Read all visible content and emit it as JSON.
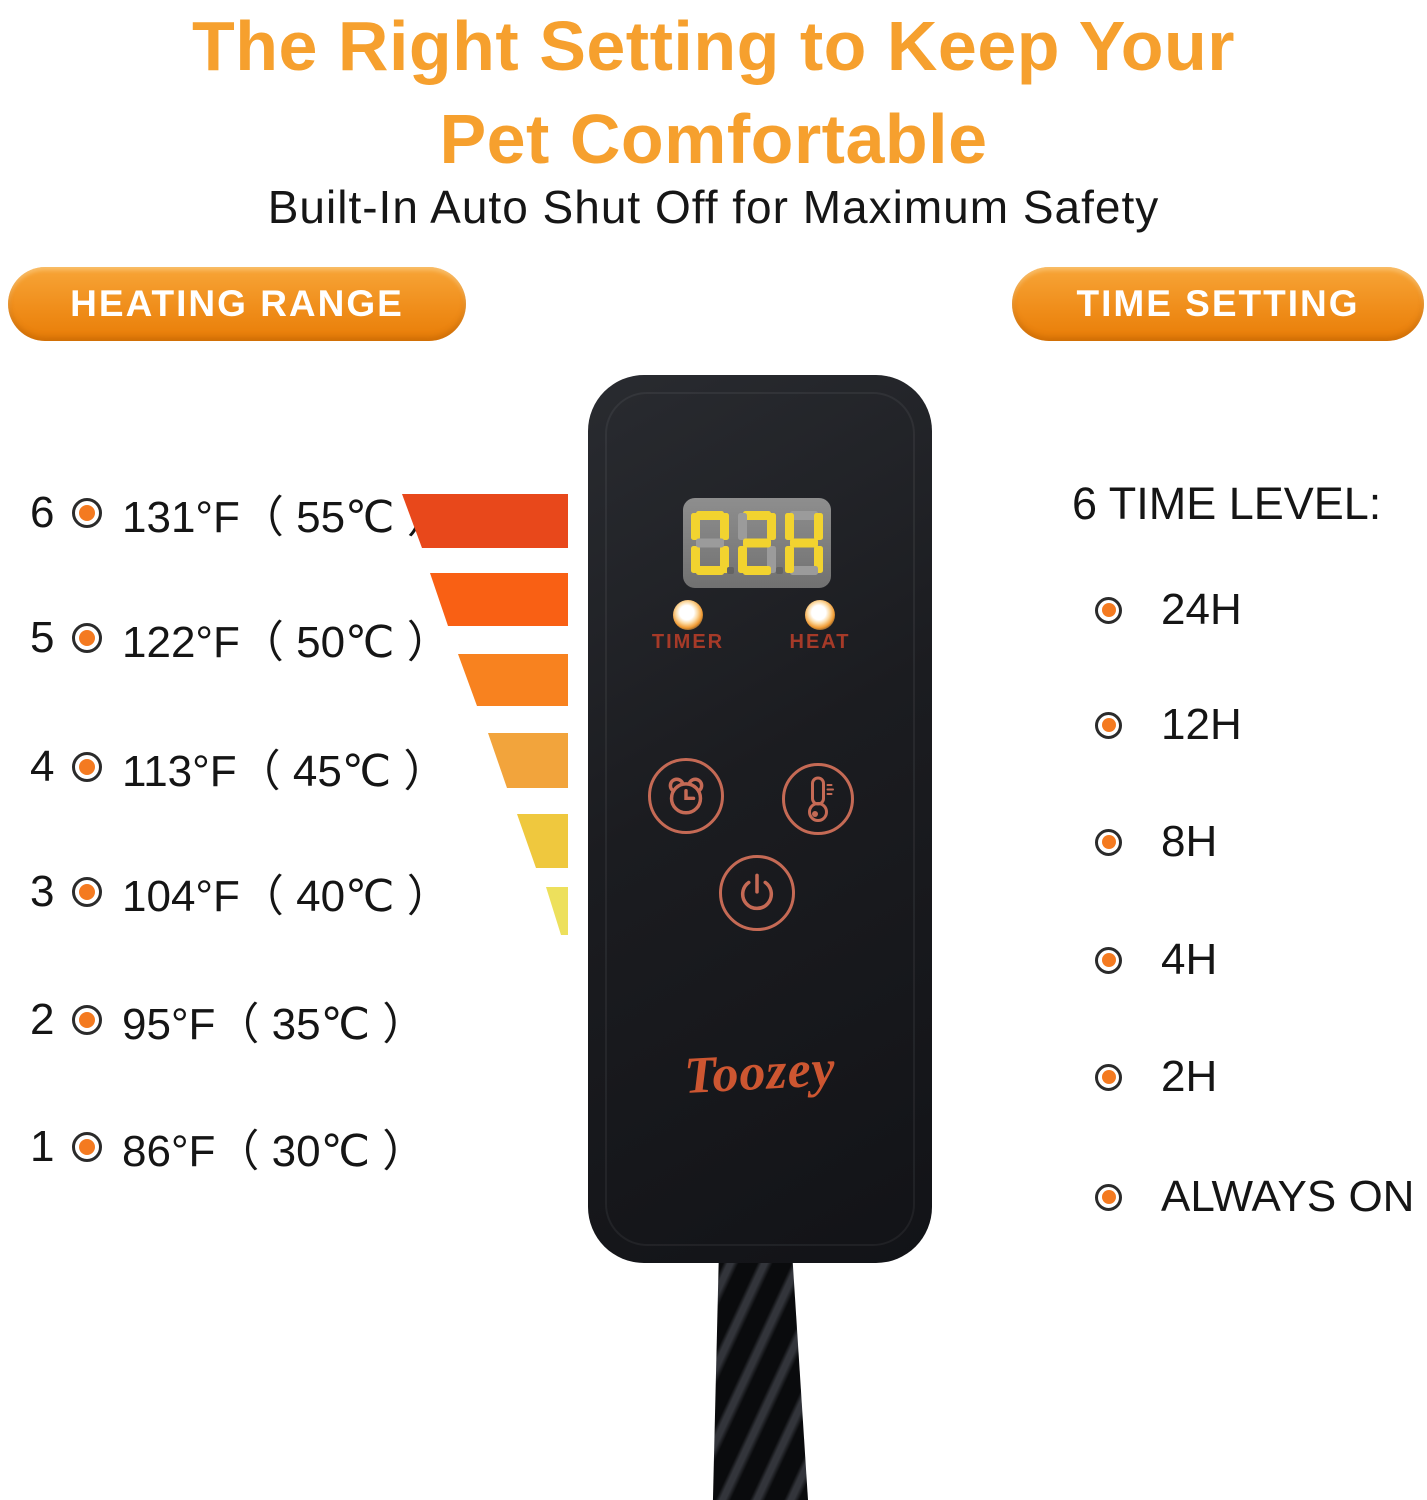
{
  "header": {
    "title_line1": "The Right Setting to Keep Your",
    "title_line2": "Pet Comfortable",
    "subtitle": "Built-In Auto Shut Off for Maximum Safety"
  },
  "badges": {
    "heating": "HEATING RANGE",
    "time": "TIME SETTING"
  },
  "heating_levels": [
    {
      "level": "6",
      "label": "131°F（ 55℃ ）",
      "bar_color": "#E8481B"
    },
    {
      "level": "5",
      "label": "122°F（ 50℃ ）",
      "bar_color": "#F96014"
    },
    {
      "level": "4",
      "label": "113°F（ 45℃ ）",
      "bar_color": "#F8821F"
    },
    {
      "level": "3",
      "label": "104°F（ 40℃ ）",
      "bar_color": "#F2A43C"
    },
    {
      "level": "2",
      "label": "95°F（ 35℃ ）",
      "bar_color": "#EFC83E"
    },
    {
      "level": "1",
      "label": "86°F（ 30℃ ）",
      "bar_color": "#EDE05C"
    }
  ],
  "device": {
    "display_value": "02H",
    "timer_label": "TIMER",
    "heat_label": "HEAT",
    "logo": "Toozey"
  },
  "time_setting": {
    "heading": "6 TIME LEVEL:",
    "items": [
      "24H",
      "12H",
      "8H",
      "4H",
      "2H",
      "ALWAYS ON"
    ]
  },
  "icons": {
    "timer_button": "alarm-clock-icon",
    "heat_button": "thermometer-icon",
    "power_button": "power-icon",
    "list_marker": "radio-dot-icon"
  },
  "colors": {
    "title_orange": "#F6A02E",
    "badge_orange_top": "#F7A538",
    "badge_orange_bottom": "#E87D07",
    "bullet_orange": "#F47A20",
    "device_body": "#1B1C20",
    "display_panel": "#7E7E7E",
    "segment_on": "#F2D32F",
    "segment_off": "#9B9B9B",
    "indicator_label": "#A63A28",
    "button_stroke": "#C56A55",
    "logo_orange": "#CD5631"
  }
}
